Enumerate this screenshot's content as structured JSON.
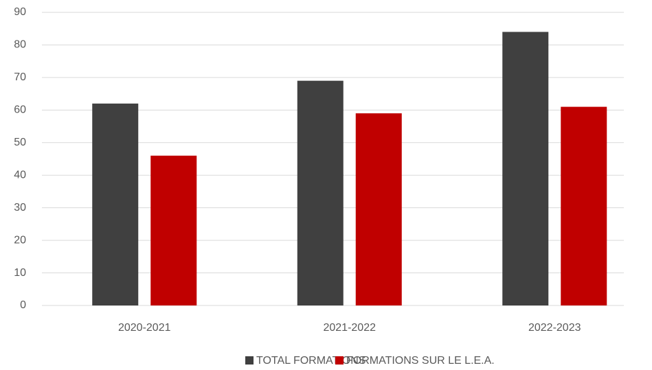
{
  "chart_data": {
    "type": "bar",
    "categories": [
      "2020-2021",
      "2021-2022",
      "2022-2023"
    ],
    "series": [
      {
        "name": "TOTAL FORMATIONS",
        "color": "#404040",
        "values": [
          62,
          69,
          84
        ]
      },
      {
        "name": "FORMATIONS SUR LE L.E.A.",
        "color": "#c00000",
        "values": [
          46,
          59,
          61
        ]
      }
    ],
    "ylim": [
      0,
      90
    ],
    "yticks": [
      0,
      10,
      20,
      30,
      40,
      50,
      60,
      70,
      80,
      90
    ],
    "grid": true,
    "legend": "bottom"
  }
}
